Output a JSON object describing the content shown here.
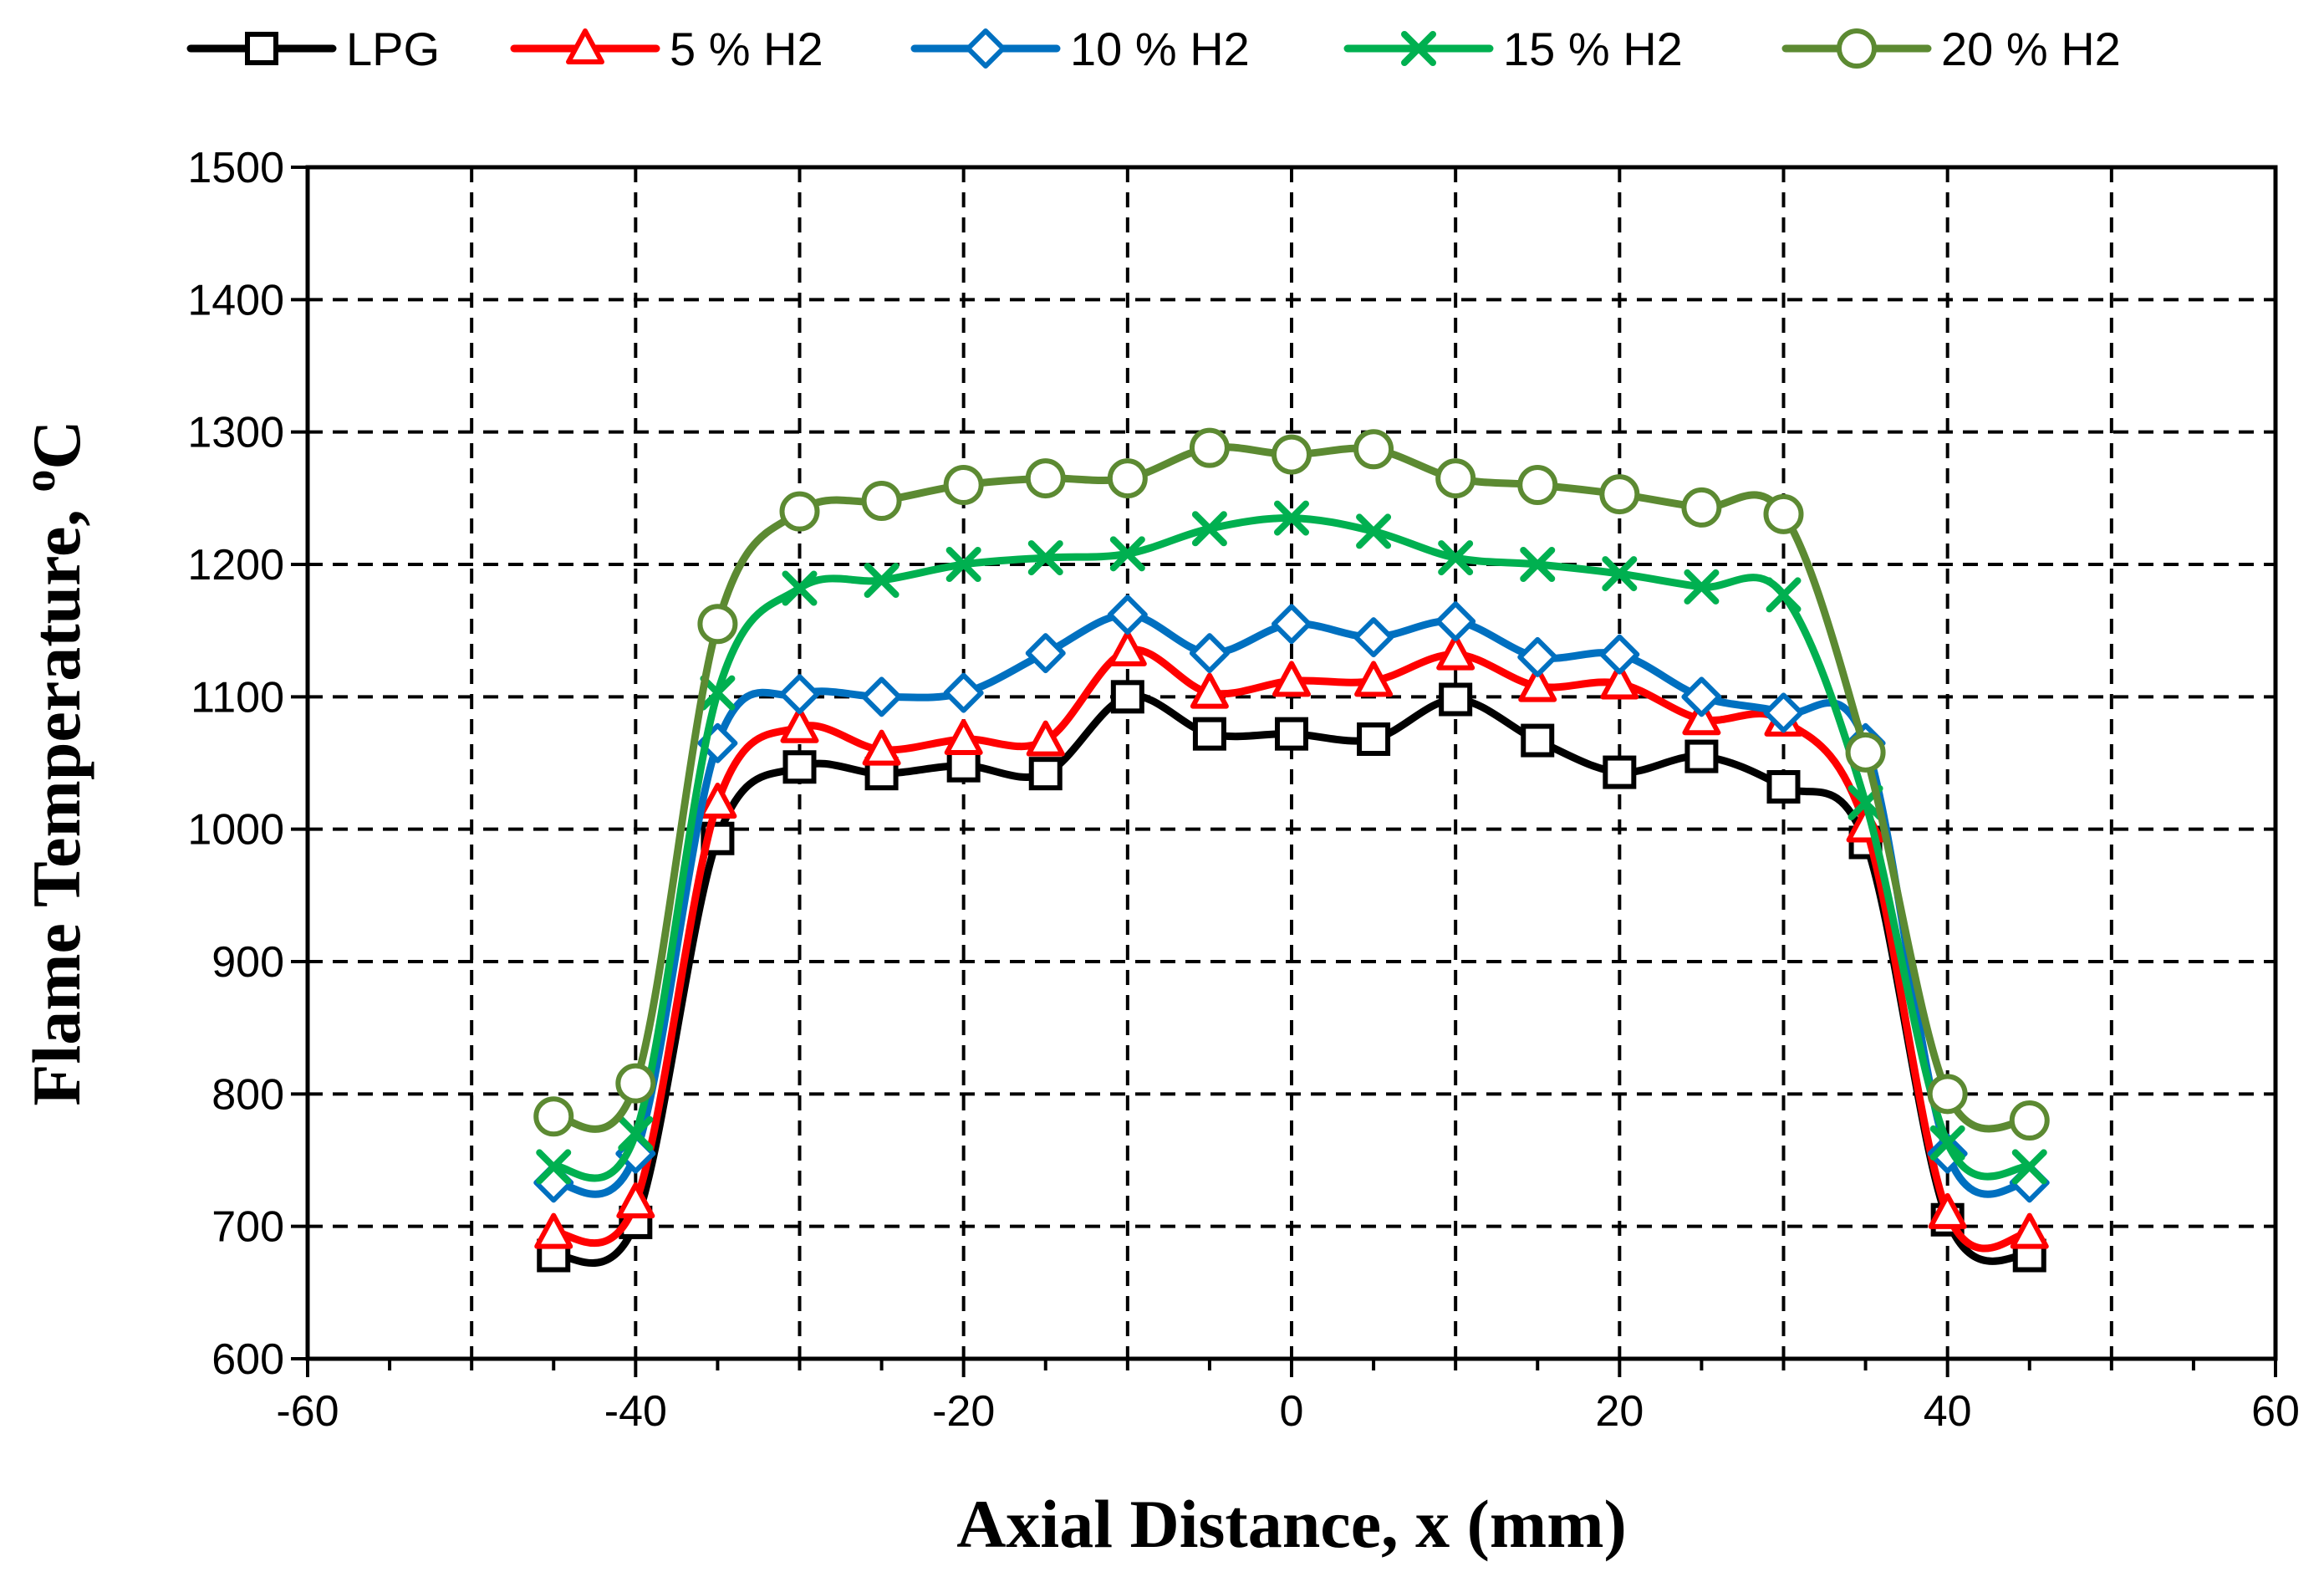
{
  "chart_data": {
    "type": "line",
    "title": "",
    "xlabel": "Axial Distance, x (mm)",
    "ylabel_main": "Flame Temperature, ",
    "ylabel_sup": "o",
    "ylabel_unit": "C",
    "xlim": [
      -60,
      60
    ],
    "ylim": [
      600,
      1500
    ],
    "xticks": [
      -60,
      -40,
      -20,
      0,
      20,
      40,
      60
    ],
    "yticks": [
      600,
      700,
      800,
      900,
      1000,
      1100,
      1200,
      1300,
      1400,
      1500
    ],
    "grid": true,
    "legend_position": "top",
    "x": [
      -45,
      -40,
      -35,
      -30,
      -25,
      -20,
      -15,
      -10,
      -5,
      0,
      5,
      10,
      15,
      20,
      25,
      30,
      35,
      40,
      45
    ],
    "series": [
      {
        "name": "LPG",
        "color": "#000000",
        "marker": "square",
        "values": [
          678,
          703,
          993,
          1047,
          1042,
          1048,
          1042,
          1100,
          1072,
          1072,
          1068,
          1098,
          1067,
          1043,
          1055,
          1032,
          990,
          705,
          678
        ]
      },
      {
        "name": "5 % H2",
        "color": "#ff0000",
        "marker": "triangle",
        "values": [
          695,
          718,
          1020,
          1077,
          1060,
          1068,
          1067,
          1135,
          1103,
          1112,
          1112,
          1132,
          1108,
          1110,
          1083,
          1082,
          1002,
          710,
          695
        ]
      },
      {
        "name": "10 % H2",
        "color": "#0070c0",
        "marker": "diamond",
        "values": [
          733,
          755,
          1065,
          1102,
          1100,
          1103,
          1133,
          1162,
          1133,
          1155,
          1145,
          1157,
          1130,
          1132,
          1100,
          1088,
          1065,
          755,
          733
        ]
      },
      {
        "name": "15 % H2",
        "color": "#00b050",
        "marker": "x",
        "values": [
          745,
          770,
          1103,
          1182,
          1188,
          1200,
          1205,
          1208,
          1227,
          1235,
          1225,
          1205,
          1200,
          1193,
          1183,
          1177,
          1020,
          763,
          745
        ]
      },
      {
        "name": "20 % H2",
        "color": "#5c8a32",
        "marker": "circle",
        "values": [
          783,
          808,
          1155,
          1240,
          1248,
          1260,
          1265,
          1265,
          1288,
          1283,
          1287,
          1265,
          1260,
          1253,
          1243,
          1238,
          1058,
          800,
          780
        ]
      }
    ]
  }
}
